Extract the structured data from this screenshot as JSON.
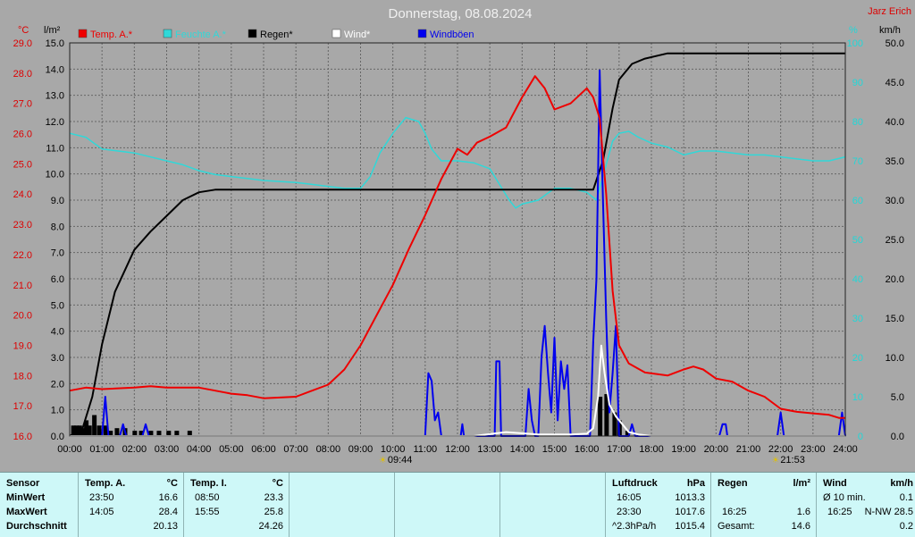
{
  "chart_data": {
    "type": "line",
    "title": "Donnerstag, 08.08.2024",
    "brand": "Jarz Erich",
    "left_axis_label": "°C",
    "rain_axis_label": "l/m²",
    "humidity_axis_label": "%",
    "wind_axis_label": "km/h",
    "legend": [
      {
        "label": "Temp. A.*",
        "color": "#ee0000"
      },
      {
        "label": "Feuchte A.*",
        "color": "#30d8d8"
      },
      {
        "label": "Regen*",
        "color": "#000000"
      },
      {
        "label": "Wind*",
        "color": "#ffffff"
      },
      {
        "label": "Windböen",
        "color": "#0000ee"
      }
    ],
    "temp_range": [
      16,
      29
    ],
    "temp_ticks": [
      "29.0",
      "28.0",
      "27.0",
      "26.0",
      "25.0",
      "24.0",
      "23.0",
      "22.0",
      "21.0",
      "20.0",
      "19.0",
      "18.0",
      "17.0",
      "16.0"
    ],
    "rain_range": [
      0,
      15
    ],
    "rain_ticks": [
      "15.0",
      "14.0",
      "13.0",
      "12.0",
      "11.0",
      "10.0",
      "9.0",
      "8.0",
      "7.0",
      "6.0",
      "5.0",
      "4.0",
      "3.0",
      "2.0",
      "1.0",
      "0.0"
    ],
    "humidity_range": [
      0,
      100
    ],
    "humidity_ticks": [
      "100",
      "90",
      "80",
      "70",
      "60",
      "50",
      "40",
      "30",
      "20",
      "10",
      "0"
    ],
    "wind_range": [
      0,
      50
    ],
    "wind_ticks": [
      "50.0",
      "45.0",
      "40.0",
      "35.0",
      "30.0",
      "25.0",
      "20.0",
      "15.0",
      "10.0",
      "5.0",
      "0.0"
    ],
    "x_range": [
      0,
      24
    ],
    "x_ticks": [
      "00:00",
      "01:00",
      "02:00",
      "03:00",
      "04:00",
      "05:00",
      "06:00",
      "07:00",
      "08:00",
      "09:00",
      "10:00",
      "11:00",
      "12:00",
      "13:00",
      "14:00",
      "15:00",
      "16:00",
      "17:00",
      "18:00",
      "19:00",
      "20:00",
      "21:00",
      "22:00",
      "23:00",
      "24:00"
    ],
    "sunrise": {
      "time": "09:44",
      "hour": 9.73
    },
    "sunset": {
      "time": "21:53",
      "hour": 21.88
    },
    "temperature": [
      [
        0,
        17.5
      ],
      [
        0.5,
        17.6
      ],
      [
        1,
        17.55
      ],
      [
        2,
        17.6
      ],
      [
        2.5,
        17.65
      ],
      [
        3,
        17.6
      ],
      [
        4,
        17.6
      ],
      [
        4.5,
        17.5
      ],
      [
        5,
        17.4
      ],
      [
        5.5,
        17.35
      ],
      [
        6,
        17.25
      ],
      [
        7,
        17.3
      ],
      [
        7.5,
        17.5
      ],
      [
        8,
        17.7
      ],
      [
        8.5,
        18.2
      ],
      [
        9,
        19.0
      ],
      [
        9.5,
        20.0
      ],
      [
        10,
        21.0
      ],
      [
        10.5,
        22.2
      ],
      [
        11,
        23.3
      ],
      [
        11.5,
        24.5
      ],
      [
        12,
        25.5
      ],
      [
        12.3,
        25.3
      ],
      [
        12.6,
        25.7
      ],
      [
        13,
        25.9
      ],
      [
        13.5,
        26.2
      ],
      [
        14,
        27.2
      ],
      [
        14.4,
        27.9
      ],
      [
        14.7,
        27.5
      ],
      [
        15,
        26.8
      ],
      [
        15.5,
        27.0
      ],
      [
        16,
        27.5
      ],
      [
        16.2,
        27.2
      ],
      [
        16.4,
        26.5
      ],
      [
        16.6,
        24.0
      ],
      [
        16.8,
        20.8
      ],
      [
        17,
        19.0
      ],
      [
        17.3,
        18.4
      ],
      [
        17.8,
        18.1
      ],
      [
        18.5,
        18.0
      ],
      [
        19,
        18.2
      ],
      [
        19.3,
        18.3
      ],
      [
        19.6,
        18.2
      ],
      [
        20,
        17.9
      ],
      [
        20.5,
        17.8
      ],
      [
        21,
        17.5
      ],
      [
        21.5,
        17.3
      ],
      [
        22,
        16.9
      ],
      [
        22.5,
        16.8
      ],
      [
        23,
        16.75
      ],
      [
        23.5,
        16.7
      ],
      [
        23.8,
        16.6
      ],
      [
        24,
        16.6
      ]
    ],
    "humidity": [
      [
        0,
        77
      ],
      [
        0.5,
        76
      ],
      [
        1,
        73
      ],
      [
        1.5,
        72.5
      ],
      [
        2,
        72
      ],
      [
        3,
        70
      ],
      [
        3.5,
        69
      ],
      [
        4,
        67.5
      ],
      [
        4.5,
        66.5
      ],
      [
        5,
        66
      ],
      [
        5.5,
        65.5
      ],
      [
        6,
        65
      ],
      [
        7,
        64.5
      ],
      [
        7.5,
        64
      ],
      [
        8,
        63.5
      ],
      [
        8.5,
        63
      ],
      [
        9,
        63
      ],
      [
        9.3,
        66
      ],
      [
        9.6,
        72
      ],
      [
        10,
        77
      ],
      [
        10.4,
        81
      ],
      [
        10.8,
        80
      ],
      [
        11,
        77
      ],
      [
        11.2,
        73
      ],
      [
        11.5,
        70
      ],
      [
        12,
        70
      ],
      [
        12.5,
        69.5
      ],
      [
        13,
        68
      ],
      [
        13.3,
        64
      ],
      [
        13.6,
        60
      ],
      [
        13.8,
        58
      ],
      [
        14,
        59
      ],
      [
        14.5,
        60
      ],
      [
        15,
        63
      ],
      [
        15.5,
        63
      ],
      [
        16,
        62
      ],
      [
        16.3,
        60
      ],
      [
        16.5,
        66
      ],
      [
        16.8,
        75
      ],
      [
        17,
        77
      ],
      [
        17.3,
        77.5
      ],
      [
        17.6,
        76
      ],
      [
        18,
        74.5
      ],
      [
        18.5,
        73.5
      ],
      [
        19,
        71.5
      ],
      [
        19.5,
        72.5
      ],
      [
        20,
        72.5
      ],
      [
        21,
        71.5
      ],
      [
        21.5,
        71.5
      ],
      [
        22,
        71
      ],
      [
        23,
        70
      ],
      [
        23.5,
        70
      ],
      [
        24,
        71
      ]
    ],
    "rain_cumulative": [
      [
        0,
        0
      ],
      [
        0.4,
        0.3
      ],
      [
        0.7,
        1.5
      ],
      [
        1,
        3.5
      ],
      [
        1.4,
        5.5
      ],
      [
        2,
        7.1
      ],
      [
        2.5,
        7.8
      ],
      [
        3,
        8.4
      ],
      [
        3.5,
        9.0
      ],
      [
        4,
        9.3
      ],
      [
        4.5,
        9.4
      ],
      [
        16.2,
        9.4
      ],
      [
        16.5,
        10.5
      ],
      [
        16.8,
        12.5
      ],
      [
        17,
        13.6
      ],
      [
        17.4,
        14.2
      ],
      [
        17.8,
        14.4
      ],
      [
        18.5,
        14.6
      ],
      [
        24,
        14.6
      ]
    ],
    "rain_bars": [
      [
        0.1,
        0.4
      ],
      [
        0.2,
        0.4
      ],
      [
        0.3,
        0.4
      ],
      [
        0.4,
        0.3
      ],
      [
        0.5,
        0.6
      ],
      [
        0.6,
        0.4
      ],
      [
        0.75,
        0.8
      ],
      [
        0.9,
        0.4
      ],
      [
        1.1,
        0.4
      ],
      [
        1.25,
        0.2
      ],
      [
        1.45,
        0.3
      ],
      [
        1.7,
        0.3
      ],
      [
        2.0,
        0.2
      ],
      [
        2.2,
        0.2
      ],
      [
        2.5,
        0.2
      ],
      [
        2.75,
        0.2
      ],
      [
        3.05,
        0.2
      ],
      [
        3.3,
        0.2
      ],
      [
        3.7,
        0.2
      ],
      [
        16.4,
        1.5
      ],
      [
        16.6,
        1.6
      ],
      [
        16.85,
        0.9
      ],
      [
        17.0,
        0.6
      ],
      [
        17.25,
        0.2
      ]
    ],
    "wind": [
      [
        0,
        0
      ],
      [
        12.5,
        0
      ],
      [
        13.5,
        0.5
      ],
      [
        14.5,
        0.2
      ],
      [
        15,
        0.2
      ],
      [
        15.5,
        0.2
      ],
      [
        16,
        0.3
      ],
      [
        16.2,
        1.0
      ],
      [
        16.35,
        5.0
      ],
      [
        16.45,
        11.5
      ],
      [
        16.55,
        8.0
      ],
      [
        16.7,
        4.0
      ],
      [
        16.9,
        2.5
      ],
      [
        17.1,
        1.5
      ],
      [
        17.3,
        0.5
      ],
      [
        17.6,
        0.2
      ],
      [
        18,
        0
      ],
      [
        24,
        0
      ]
    ],
    "gusts": [
      [
        0,
        0
      ],
      [
        1.0,
        0
      ],
      [
        1.1,
        5.0
      ],
      [
        1.2,
        0
      ],
      [
        1.55,
        0
      ],
      [
        1.65,
        1.5
      ],
      [
        1.75,
        0
      ],
      [
        2.25,
        0
      ],
      [
        2.35,
        1.5
      ],
      [
        2.45,
        0
      ],
      [
        11.0,
        0
      ],
      [
        11.1,
        8.0
      ],
      [
        11.2,
        7.0
      ],
      [
        11.3,
        2.0
      ],
      [
        11.4,
        3.0
      ],
      [
        11.5,
        0
      ],
      [
        12.1,
        0
      ],
      [
        12.15,
        1.5
      ],
      [
        12.2,
        0
      ],
      [
        13.15,
        0
      ],
      [
        13.2,
        9.5
      ],
      [
        13.3,
        9.5
      ],
      [
        13.35,
        0
      ],
      [
        14.1,
        0
      ],
      [
        14.2,
        6.0
      ],
      [
        14.3,
        2.0
      ],
      [
        14.4,
        0
      ],
      [
        14.5,
        0
      ],
      [
        14.6,
        10.0
      ],
      [
        14.7,
        14.0
      ],
      [
        14.8,
        8.0
      ],
      [
        14.9,
        3.0
      ],
      [
        15.0,
        12.5
      ],
      [
        15.1,
        2.0
      ],
      [
        15.2,
        9.5
      ],
      [
        15.3,
        6.0
      ],
      [
        15.4,
        9.0
      ],
      [
        15.5,
        0
      ],
      [
        16.1,
        0
      ],
      [
        16.2,
        12.0
      ],
      [
        16.3,
        20.0
      ],
      [
        16.4,
        46.5
      ],
      [
        16.5,
        30.0
      ],
      [
        16.6,
        15.0
      ],
      [
        16.7,
        3.0
      ],
      [
        16.8,
        8.0
      ],
      [
        16.9,
        14.0
      ],
      [
        17.0,
        0
      ],
      [
        17.3,
        0
      ],
      [
        17.4,
        1.5
      ],
      [
        17.5,
        0
      ],
      [
        20.1,
        0
      ],
      [
        20.2,
        1.5
      ],
      [
        20.3,
        1.5
      ],
      [
        20.35,
        0
      ],
      [
        21.9,
        0
      ],
      [
        22.0,
        3.0
      ],
      [
        22.1,
        0
      ],
      [
        23.8,
        0
      ],
      [
        23.9,
        3.0
      ],
      [
        24,
        0
      ]
    ]
  },
  "table": {
    "sensor": {
      "header": "Sensor",
      "rows": [
        "MinWert",
        "MaxWert",
        "Durchschnitt"
      ]
    },
    "temp_a": {
      "header": "Temp. A.",
      "unit": "°C",
      "min_time": "23:50",
      "min_value": "16.6",
      "max_time": "14:05",
      "max_value": "28.4",
      "avg": "20.13"
    },
    "temp_i": {
      "header": "Temp. I.",
      "unit": "°C",
      "min_time": "08:50",
      "min_value": "23.3",
      "max_time": "15:55",
      "max_value": "25.8",
      "avg": "24.26"
    },
    "pressure": {
      "header": "Luftdruck",
      "unit": "hPa",
      "min_time": "16:05",
      "min_value": "1013.3",
      "max_time": "23:30",
      "max_value": "1017.6",
      "trend_label": "^2.3hPa/h",
      "trend_value": "1015.4"
    },
    "rain": {
      "header": "Regen",
      "unit": "l/m²",
      "max_time": "16:25",
      "max_value": "1.6",
      "total_label": "Gesamt:",
      "total_value": "14.6"
    },
    "wind": {
      "header": "Wind",
      "unit": "km/h",
      "avg_label": "Ø 10 min.",
      "avg_value": "0.1",
      "max_time": "16:25",
      "max_value": "N-NW 28.5",
      "last_value": "0.2"
    }
  }
}
